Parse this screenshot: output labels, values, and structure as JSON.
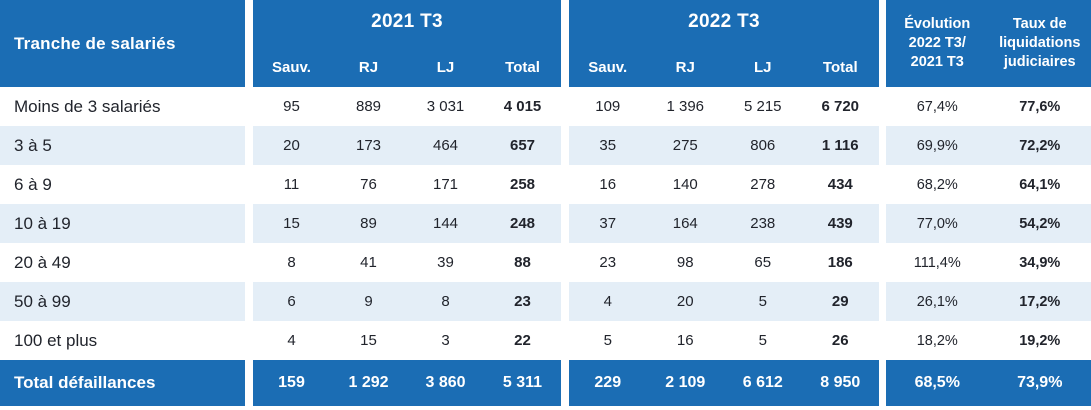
{
  "colors": {
    "header_blue": "#1b6db4",
    "row_alt_blue": "#e4eef7",
    "text_dark": "#21242c",
    "background": "#ffffff"
  },
  "table": {
    "row_header": "Tranche de salariés",
    "g2021": {
      "title": "2021 T3",
      "cols": [
        "Sauv.",
        "RJ",
        "LJ",
        "Total"
      ]
    },
    "g2022": {
      "title": "2022 T3",
      "cols": [
        "Sauv.",
        "RJ",
        "LJ",
        "Total"
      ]
    },
    "evolution_lines": [
      "Évolution",
      "2022 T3/",
      "2021 T3"
    ],
    "taux_lines": [
      "Taux de",
      "liquidations",
      "judiciaires"
    ],
    "rows": [
      {
        "label": "Moins de 3 salariés",
        "s21": "95",
        "rj21": "889",
        "lj21": "3 031",
        "t21": "4 015",
        "s22": "109",
        "rj22": "1 396",
        "lj22": "5 215",
        "t22": "6 720",
        "evo": "67,4%",
        "taux": "77,6%"
      },
      {
        "label": "3 à 5",
        "s21": "20",
        "rj21": "173",
        "lj21": "464",
        "t21": "657",
        "s22": "35",
        "rj22": "275",
        "lj22": "806",
        "t22": "1 116",
        "evo": "69,9%",
        "taux": "72,2%"
      },
      {
        "label": "6 à 9",
        "s21": "11",
        "rj21": "76",
        "lj21": "171",
        "t21": "258",
        "s22": "16",
        "rj22": "140",
        "lj22": "278",
        "t22": "434",
        "evo": "68,2%",
        "taux": "64,1%"
      },
      {
        "label": "10 à 19",
        "s21": "15",
        "rj21": "89",
        "lj21": "144",
        "t21": "248",
        "s22": "37",
        "rj22": "164",
        "lj22": "238",
        "t22": "439",
        "evo": "77,0%",
        "taux": "54,2%"
      },
      {
        "label": "20 à 49",
        "s21": "8",
        "rj21": "41",
        "lj21": "39",
        "t21": "88",
        "s22": "23",
        "rj22": "98",
        "lj22": "65",
        "t22": "186",
        "evo": "111,4%",
        "taux": "34,9%"
      },
      {
        "label": "50 à 99",
        "s21": "6",
        "rj21": "9",
        "lj21": "8",
        "t21": "23",
        "s22": "4",
        "rj22": "20",
        "lj22": "5",
        "t22": "29",
        "evo": "26,1%",
        "taux": "17,2%"
      },
      {
        "label": "100 et plus",
        "s21": "4",
        "rj21": "15",
        "lj21": "3",
        "t21": "22",
        "s22": "5",
        "rj22": "16",
        "lj22": "5",
        "t22": "26",
        "evo": "18,2%",
        "taux": "19,2%"
      }
    ],
    "total": {
      "label": "Total défaillances",
      "s21": "159",
      "rj21": "1 292",
      "lj21": "3 860",
      "t21": "5 311",
      "s22": "229",
      "rj22": "2 109",
      "lj22": "6 612",
      "t22": "8 950",
      "evo": "68,5%",
      "taux": "73,9%"
    }
  },
  "chart_data": {
    "type": "table",
    "title": "Défaillances par tranche de salariés — 2021 T3 vs 2022 T3",
    "columns": [
      "Tranche de salariés",
      "Sauv. 2021 T3",
      "RJ 2021 T3",
      "LJ 2021 T3",
      "Total 2021 T3",
      "Sauv. 2022 T3",
      "RJ 2022 T3",
      "LJ 2022 T3",
      "Total 2022 T3",
      "Évolution 2022 T3/2021 T3",
      "Taux de liquidations judiciaires"
    ],
    "rows": [
      [
        "Moins de 3 salariés",
        95,
        889,
        3031,
        4015,
        109,
        1396,
        5215,
        6720,
        "67,4%",
        "77,6%"
      ],
      [
        "3 à 5",
        20,
        173,
        464,
        657,
        35,
        275,
        806,
        1116,
        "69,9%",
        "72,2%"
      ],
      [
        "6 à 9",
        11,
        76,
        171,
        258,
        16,
        140,
        278,
        434,
        "68,2%",
        "64,1%"
      ],
      [
        "10 à 19",
        15,
        89,
        144,
        248,
        37,
        164,
        238,
        439,
        "77,0%",
        "54,2%"
      ],
      [
        "20 à 49",
        8,
        41,
        39,
        88,
        23,
        98,
        65,
        186,
        "111,4%",
        "34,9%"
      ],
      [
        "50 à 99",
        6,
        9,
        8,
        23,
        4,
        20,
        5,
        29,
        "26,1%",
        "17,2%"
      ],
      [
        "100 et plus",
        4,
        15,
        3,
        22,
        5,
        16,
        5,
        26,
        "18,2%",
        "19,2%"
      ],
      [
        "Total défaillances",
        159,
        1292,
        3860,
        5311,
        229,
        2109,
        6612,
        8950,
        "68,5%",
        "73,9%"
      ]
    ]
  }
}
